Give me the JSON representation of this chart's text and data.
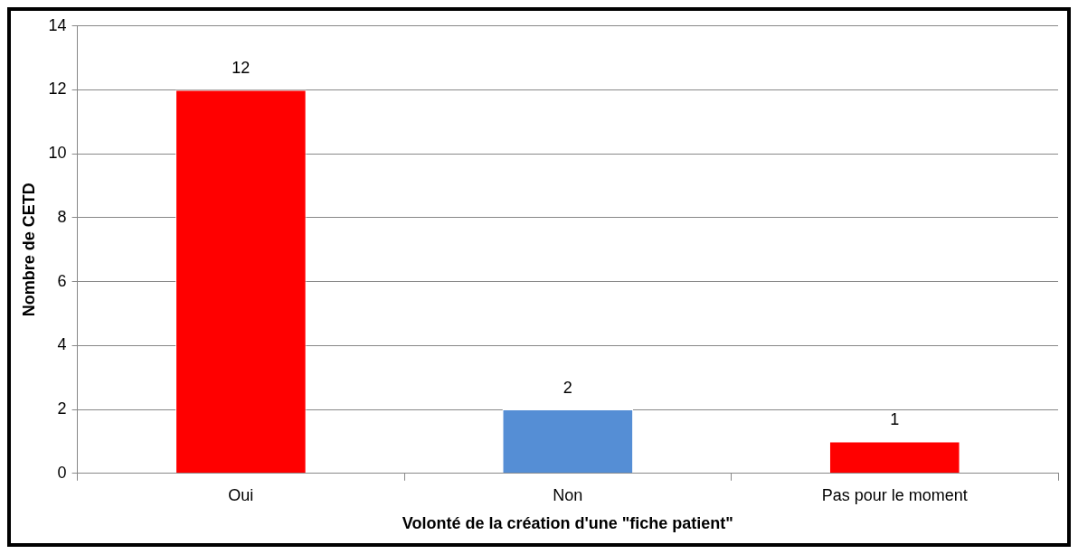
{
  "chart_data": {
    "type": "bar",
    "xlabel": "Volonté de la création d'une \"fiche patient\"",
    "ylabel": "Nombre de CETD",
    "categories": [
      "Oui",
      "Non",
      "Pas pour le moment"
    ],
    "values": [
      12,
      2,
      1
    ],
    "colors": [
      "#ff0000",
      "#558ed5",
      "#ff0000"
    ],
    "ylim": [
      0,
      14
    ],
    "yticks": [
      0,
      2,
      4,
      6,
      8,
      10,
      12,
      14
    ],
    "grid": "y",
    "data_labels": true,
    "legend": false
  }
}
